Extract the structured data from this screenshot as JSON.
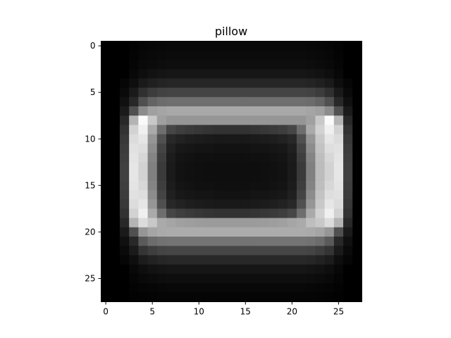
{
  "chart_data": {
    "type": "heatmap",
    "title": "pillow",
    "xlabel": "",
    "ylabel": "",
    "colormap": "gray",
    "xlim": [
      -0.5,
      27.5
    ],
    "ylim": [
      27.5,
      -0.5
    ],
    "xticks": [
      0,
      5,
      10,
      15,
      20,
      25
    ],
    "yticks": [
      0,
      5,
      10,
      15,
      20,
      25
    ],
    "grid": false,
    "shape": [
      28,
      28
    ],
    "values": [
      [
        0,
        0,
        0,
        3,
        5,
        6,
        7,
        8,
        8,
        8,
        8,
        8,
        8,
        8,
        8,
        8,
        8,
        8,
        8,
        8,
        8,
        8,
        7,
        6,
        5,
        3,
        0,
        0
      ],
      [
        0,
        0,
        0,
        4,
        7,
        9,
        10,
        11,
        11,
        11,
        11,
        11,
        11,
        11,
        11,
        11,
        11,
        11,
        11,
        11,
        11,
        11,
        10,
        9,
        7,
        4,
        0,
        0
      ],
      [
        0,
        0,
        0,
        5,
        9,
        11,
        13,
        14,
        14,
        14,
        14,
        14,
        14,
        14,
        14,
        14,
        14,
        14,
        14,
        14,
        14,
        14,
        13,
        11,
        9,
        5,
        0,
        0
      ],
      [
        0,
        0,
        0,
        8,
        14,
        18,
        20,
        22,
        22,
        22,
        22,
        22,
        22,
        22,
        22,
        22,
        22,
        22,
        22,
        22,
        22,
        22,
        20,
        18,
        14,
        8,
        0,
        0
      ],
      [
        0,
        0,
        6,
        14,
        26,
        32,
        36,
        38,
        38,
        38,
        38,
        38,
        38,
        38,
        38,
        38,
        38,
        38,
        38,
        38,
        38,
        38,
        36,
        32,
        26,
        14,
        6,
        0
      ],
      [
        0,
        0,
        10,
        26,
        48,
        60,
        66,
        68,
        68,
        68,
        68,
        68,
        68,
        68,
        68,
        68,
        68,
        68,
        68,
        68,
        68,
        68,
        66,
        60,
        48,
        26,
        10,
        0
      ],
      [
        0,
        0,
        16,
        40,
        80,
        100,
        108,
        110,
        110,
        110,
        110,
        110,
        110,
        110,
        110,
        110,
        110,
        110,
        110,
        110,
        110,
        110,
        108,
        100,
        80,
        40,
        16,
        0
      ],
      [
        0,
        0,
        26,
        80,
        140,
        160,
        165,
        168,
        168,
        168,
        168,
        168,
        168,
        168,
        168,
        168,
        168,
        168,
        168,
        168,
        168,
        168,
        165,
        160,
        140,
        80,
        26,
        0
      ],
      [
        0,
        0,
        40,
        180,
        250,
        200,
        160,
        150,
        150,
        150,
        150,
        150,
        150,
        150,
        150,
        150,
        150,
        150,
        150,
        150,
        150,
        150,
        160,
        200,
        250,
        180,
        40,
        0
      ],
      [
        0,
        0,
        50,
        210,
        240,
        170,
        110,
        70,
        62,
        58,
        55,
        52,
        50,
        50,
        50,
        50,
        52,
        55,
        58,
        62,
        70,
        110,
        170,
        210,
        240,
        210,
        50,
        0
      ],
      [
        0,
        0,
        56,
        220,
        230,
        150,
        80,
        40,
        34,
        30,
        28,
        26,
        25,
        25,
        25,
        25,
        26,
        28,
        30,
        34,
        40,
        80,
        150,
        200,
        230,
        220,
        56,
        0
      ],
      [
        0,
        0,
        60,
        225,
        222,
        140,
        68,
        32,
        24,
        22,
        20,
        20,
        18,
        18,
        18,
        18,
        20,
        20,
        22,
        24,
        32,
        68,
        140,
        195,
        222,
        225,
        60,
        0
      ],
      [
        0,
        0,
        62,
        228,
        215,
        132,
        62,
        28,
        20,
        18,
        16,
        16,
        15,
        15,
        15,
        15,
        16,
        16,
        18,
        20,
        28,
        62,
        132,
        190,
        215,
        228,
        62,
        0
      ],
      [
        0,
        0,
        64,
        230,
        210,
        128,
        58,
        26,
        18,
        16,
        15,
        14,
        14,
        14,
        14,
        14,
        14,
        15,
        16,
        18,
        26,
        58,
        128,
        188,
        210,
        230,
        64,
        0
      ],
      [
        0,
        0,
        64,
        230,
        210,
        128,
        58,
        26,
        18,
        16,
        15,
        14,
        14,
        14,
        14,
        14,
        14,
        15,
        16,
        18,
        26,
        58,
        128,
        188,
        210,
        230,
        64,
        0
      ],
      [
        0,
        0,
        62,
        228,
        215,
        132,
        62,
        28,
        20,
        18,
        16,
        16,
        15,
        15,
        15,
        15,
        16,
        16,
        18,
        20,
        28,
        62,
        132,
        190,
        215,
        228,
        62,
        0
      ],
      [
        0,
        0,
        60,
        225,
        222,
        140,
        68,
        32,
        24,
        22,
        20,
        20,
        18,
        18,
        18,
        18,
        20,
        20,
        22,
        24,
        32,
        68,
        140,
        195,
        222,
        225,
        60,
        0
      ],
      [
        0,
        0,
        56,
        220,
        230,
        150,
        80,
        40,
        34,
        30,
        28,
        26,
        25,
        25,
        25,
        25,
        26,
        28,
        30,
        34,
        40,
        80,
        150,
        200,
        230,
        220,
        56,
        0
      ],
      [
        0,
        0,
        50,
        210,
        240,
        170,
        110,
        70,
        62,
        58,
        55,
        52,
        50,
        50,
        50,
        50,
        52,
        55,
        58,
        62,
        70,
        110,
        170,
        210,
        240,
        210,
        50,
        0
      ],
      [
        0,
        0,
        40,
        180,
        220,
        200,
        170,
        165,
        160,
        158,
        156,
        155,
        155,
        155,
        155,
        155,
        155,
        156,
        158,
        160,
        165,
        170,
        190,
        200,
        220,
        180,
        40,
        0
      ],
      [
        0,
        0,
        26,
        80,
        150,
        165,
        170,
        172,
        172,
        172,
        172,
        172,
        172,
        172,
        172,
        172,
        172,
        172,
        172,
        172,
        172,
        172,
        170,
        165,
        150,
        80,
        26,
        0
      ],
      [
        0,
        0,
        16,
        40,
        90,
        108,
        114,
        116,
        116,
        116,
        116,
        116,
        116,
        116,
        116,
        116,
        116,
        116,
        116,
        116,
        116,
        116,
        114,
        108,
        90,
        40,
        16,
        0
      ],
      [
        0,
        0,
        10,
        26,
        52,
        62,
        68,
        70,
        70,
        70,
        70,
        70,
        70,
        70,
        70,
        70,
        70,
        70,
        70,
        70,
        70,
        70,
        68,
        62,
        52,
        26,
        10,
        0
      ],
      [
        0,
        0,
        6,
        14,
        28,
        34,
        38,
        40,
        40,
        40,
        40,
        40,
        40,
        40,
        40,
        40,
        40,
        40,
        40,
        40,
        40,
        40,
        38,
        34,
        28,
        14,
        6,
        0
      ],
      [
        0,
        0,
        0,
        8,
        14,
        18,
        20,
        22,
        22,
        22,
        22,
        22,
        22,
        22,
        22,
        22,
        22,
        22,
        22,
        22,
        22,
        22,
        20,
        18,
        14,
        8,
        0,
        0
      ],
      [
        0,
        0,
        0,
        5,
        9,
        11,
        13,
        14,
        14,
        14,
        14,
        14,
        14,
        14,
        14,
        14,
        14,
        14,
        14,
        14,
        14,
        14,
        13,
        11,
        9,
        5,
        0,
        0
      ],
      [
        0,
        0,
        0,
        3,
        5,
        6,
        7,
        8,
        8,
        8,
        8,
        8,
        8,
        8,
        8,
        8,
        8,
        8,
        8,
        8,
        8,
        8,
        7,
        6,
        5,
        3,
        0,
        0
      ],
      [
        0,
        0,
        0,
        2,
        3,
        4,
        5,
        5,
        5,
        5,
        5,
        5,
        5,
        5,
        5,
        5,
        5,
        5,
        5,
        5,
        5,
        5,
        5,
        4,
        3,
        2,
        0,
        0
      ]
    ],
    "vmin": 0,
    "vmax": 255
  }
}
